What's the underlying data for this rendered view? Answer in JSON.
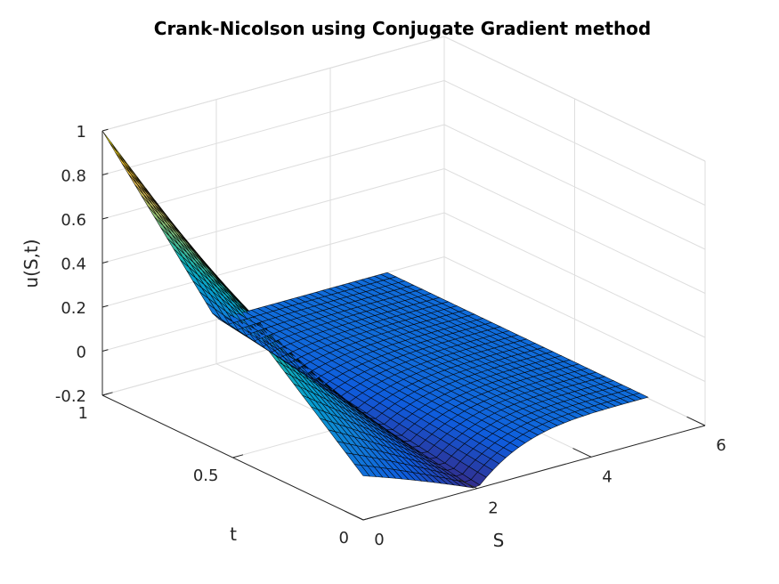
{
  "chart_data": {
    "type": "surface",
    "title": "Crank-Nicolson using Conjugate Gradient method",
    "xlabel": "S",
    "ylabel": "t",
    "zlabel": "u(S,t)",
    "xlim": [
      0,
      6
    ],
    "ylim": [
      0,
      1
    ],
    "zlim": [
      -0.2,
      1
    ],
    "xticks": [
      "0",
      "2",
      "4",
      "6"
    ],
    "yticks": [
      "0",
      "0.5",
      "1"
    ],
    "zticks": [
      "-0.2",
      "0",
      "0.2",
      "0.4",
      "0.6",
      "0.8",
      "1"
    ],
    "grid": true,
    "surface": {
      "S_range": [
        0,
        5
      ],
      "t_range": [
        0,
        1
      ],
      "description_values": {
        "u_at_S0_t1": 1.0,
        "u_at_S0_t0": 0.0,
        "u_at_S2_t1": 0.0,
        "u_at_S2_t0": -0.2,
        "u_at_S5_t1": 0.0,
        "u_at_S5_t0": 0.0
      }
    }
  }
}
